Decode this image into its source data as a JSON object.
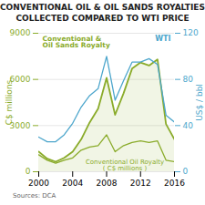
{
  "chart_data": {
    "type": "line",
    "title": "CONVENTIONAL OIL & OIL SANDS ROYALTIES\nCOLLECTED COMPARED TO WTI PRICE",
    "source": "Sources: DCA",
    "x": [
      2000,
      2001,
      2002,
      2003,
      2004,
      2005,
      2006,
      2007,
      2008,
      2009,
      2010,
      2011,
      2012,
      2013,
      2014,
      2015,
      2016
    ],
    "xlim": [
      2000,
      2016
    ],
    "xticks": [
      2000,
      2004,
      2008,
      2012,
      2016
    ],
    "ylabel": "C$ millions",
    "ylim": [
      0,
      9000
    ],
    "yticks": [
      0,
      3000,
      6000,
      9000
    ],
    "y2label": "US$ / bbl",
    "y2lim": [
      0,
      120
    ],
    "y2ticks": [
      0,
      40,
      80,
      120
    ],
    "grid": true,
    "series": [
      {
        "name": "WTI",
        "color": "#4da6cc",
        "axis": "y2",
        "values": [
          30,
          26,
          26,
          32,
          42,
          56,
          66,
          72,
          100,
          62,
          79,
          95,
          95,
          98,
          93,
          49,
          43
        ]
      },
      {
        "name": "Conventional &\nOil Sands Royalty",
        "color": "#8aab2a",
        "type": "area",
        "values": [
          1300,
          850,
          650,
          900,
          1300,
          2100,
          3200,
          4100,
          6100,
          3700,
          5100,
          6700,
          7100,
          6900,
          7300,
          3100,
          2100
        ]
      },
      {
        "name": "Conventional Oil Royalty\n( C$ millions )",
        "color": "#8aab2a",
        "values": [
          1100,
          750,
          550,
          750,
          900,
          1400,
          1600,
          1700,
          2400,
          1300,
          1700,
          1900,
          2000,
          1900,
          2000,
          750,
          650
        ]
      }
    ]
  }
}
